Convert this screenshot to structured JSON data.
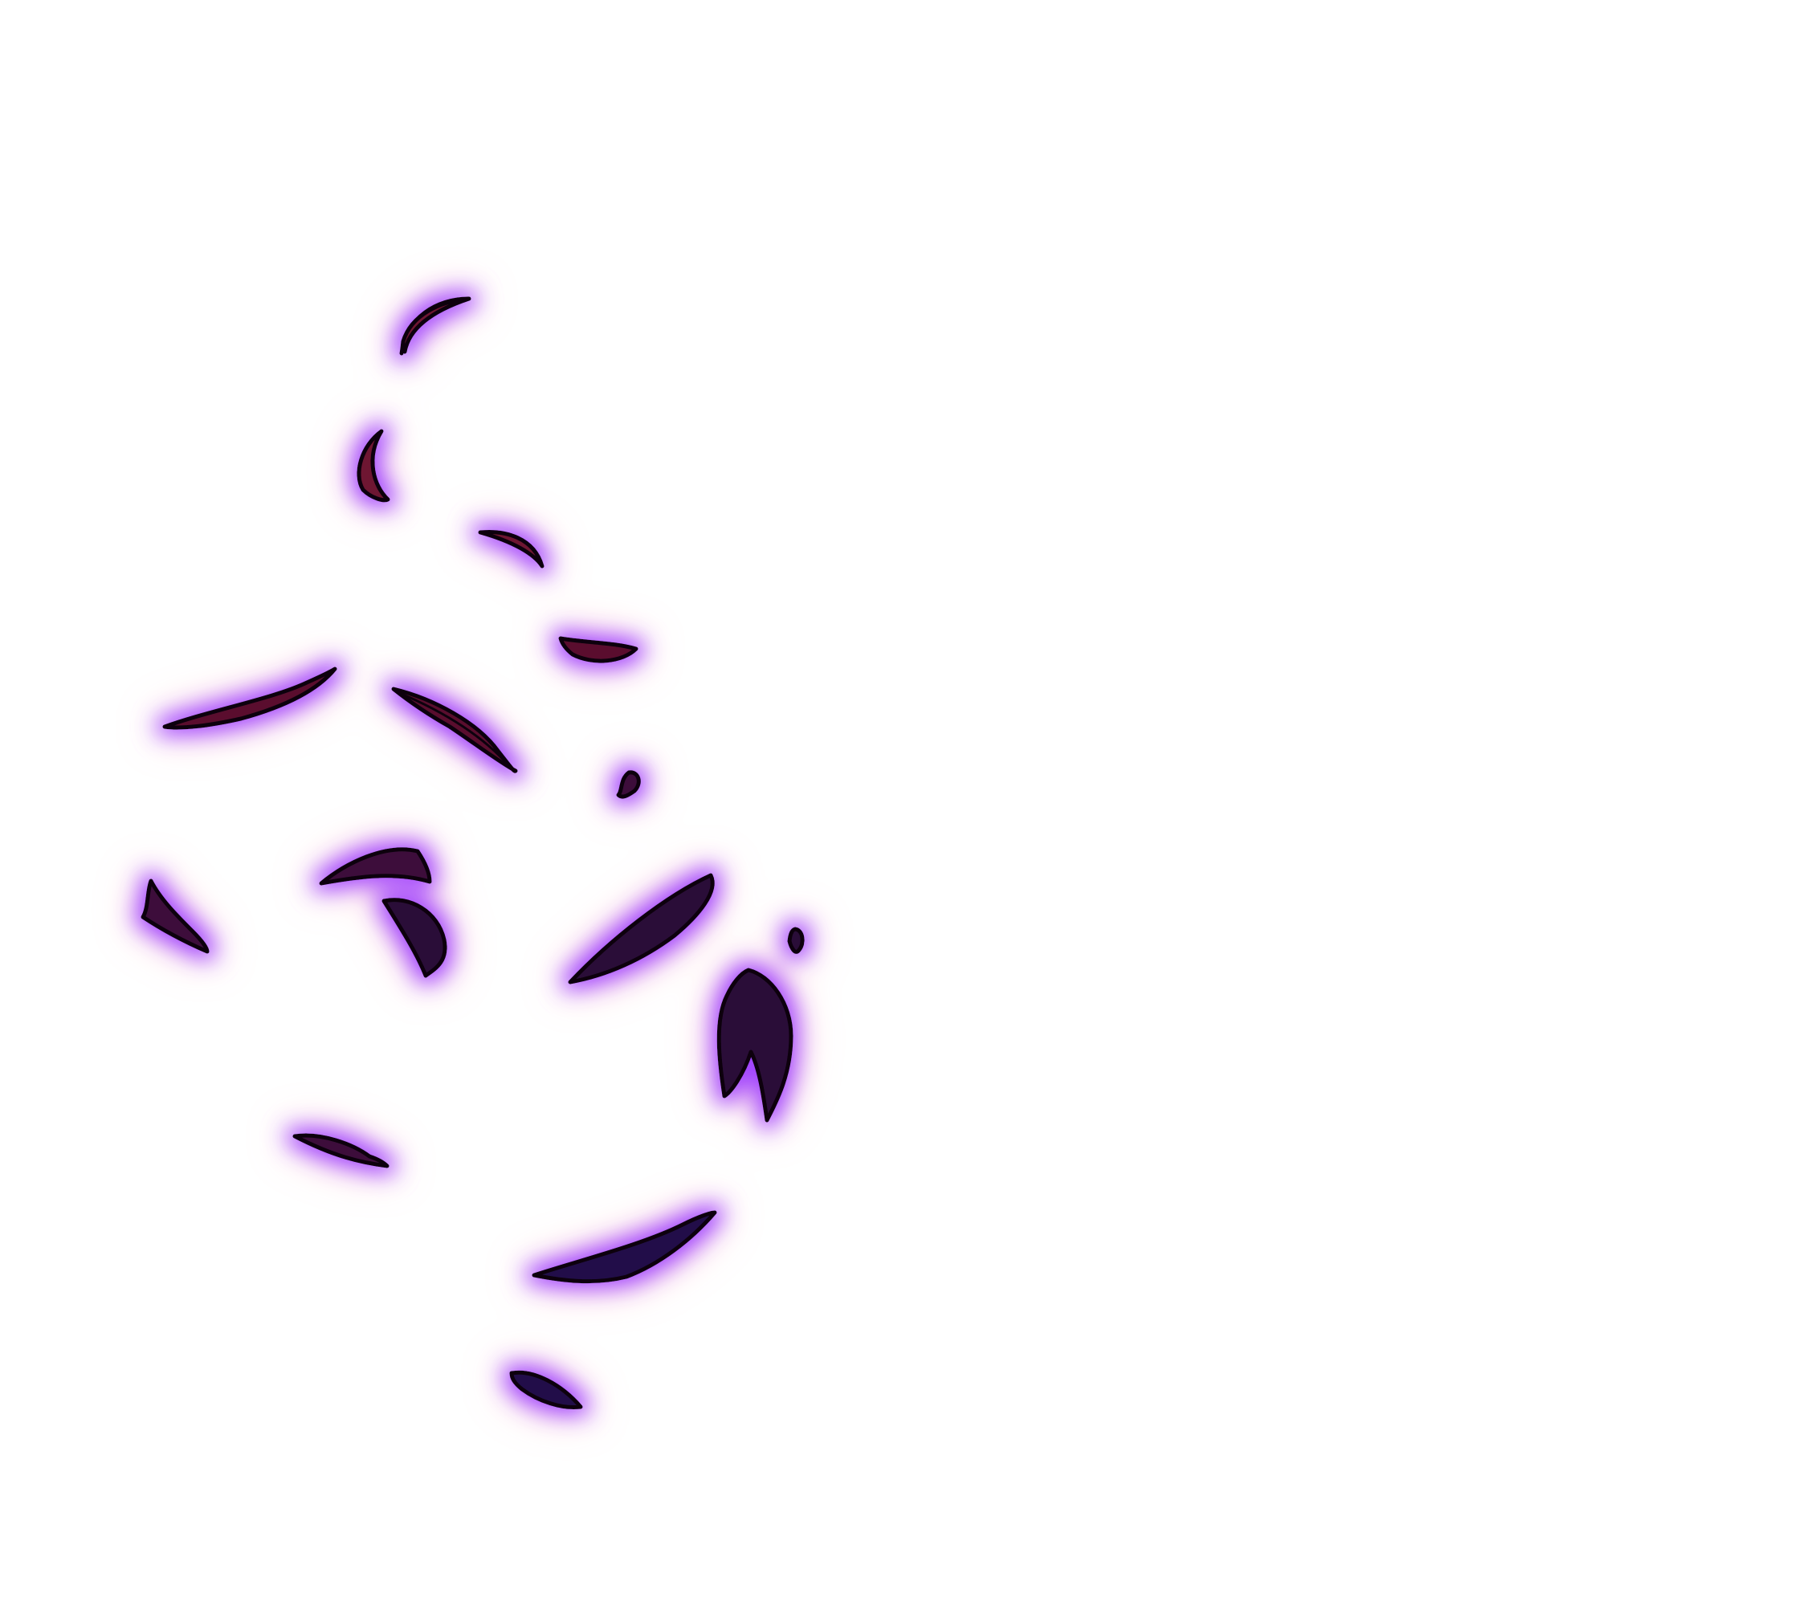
{
  "scene": {
    "background_color": "#ffffff",
    "glow_color": "#9d3cff",
    "glow_fringe_color": "#ff9fb0",
    "outline_color": "#0b0610"
  },
  "palette": {
    "crimson": "#6e1230",
    "wine": "#5a0f2e",
    "plum": "#3c0c3a",
    "aubergine": "#2c0a38",
    "indigo": "#22104a"
  }
}
